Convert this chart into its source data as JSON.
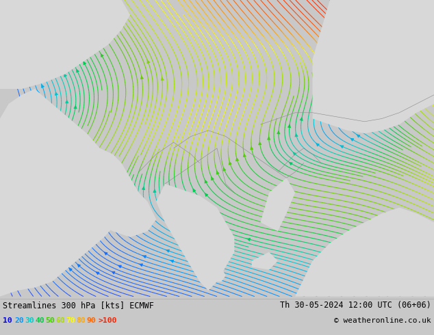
{
  "title_left": "Streamlines 300 hPa [kts] ECMWF",
  "title_right": "Th 30-05-2024 12:00 UTC (06+06)",
  "copyright": "© weatheronline.co.uk",
  "legend_values": [
    "10",
    "20",
    "30",
    "40",
    "50",
    "60",
    "70",
    "80",
    "90",
    ">100"
  ],
  "legend_colors": [
    "#0000ff",
    "#0099ff",
    "#00cccc",
    "#00cc44",
    "#44cc00",
    "#aadd00",
    "#ffff00",
    "#ffaa00",
    "#ff6600",
    "#ff2200"
  ],
  "bg_color": "#ccff99",
  "land_color": "#d8d8d8",
  "bar_color": "#c8c8c8",
  "border_color": "#888888",
  "figsize": [
    6.34,
    4.9
  ],
  "dpi": 100,
  "font_family": "DejaVu Sans Mono"
}
